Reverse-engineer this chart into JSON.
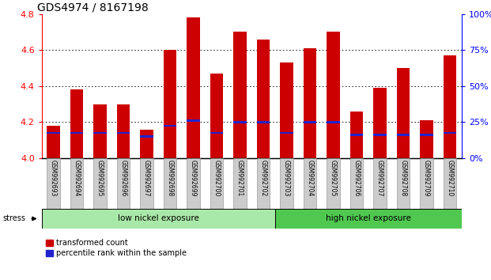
{
  "title": "GDS4974 / 8167198",
  "samples": [
    "GSM992693",
    "GSM992694",
    "GSM992695",
    "GSM992696",
    "GSM992697",
    "GSM992698",
    "GSM992699",
    "GSM992700",
    "GSM992701",
    "GSM992702",
    "GSM992703",
    "GSM992704",
    "GSM992705",
    "GSM992706",
    "GSM992707",
    "GSM992708",
    "GSM992709",
    "GSM992710"
  ],
  "red_values": [
    4.18,
    4.38,
    4.3,
    4.3,
    4.16,
    4.6,
    4.78,
    4.47,
    4.7,
    4.66,
    4.53,
    4.61,
    4.7,
    4.26,
    4.39,
    4.5,
    4.21,
    4.57
  ],
  "blue_values": [
    4.14,
    4.14,
    4.14,
    4.14,
    4.12,
    4.18,
    4.21,
    4.14,
    4.2,
    4.2,
    4.14,
    4.2,
    4.2,
    4.13,
    4.13,
    4.13,
    4.13,
    4.14
  ],
  "ymin": 4.0,
  "ymax": 4.8,
  "yticks_left": [
    4.0,
    4.2,
    4.4,
    4.6,
    4.8
  ],
  "yticks_right_vals": [
    0,
    25,
    50,
    75,
    100
  ],
  "yticks_right_labels": [
    "0%",
    "25%",
    "50%",
    "75%",
    "100%"
  ],
  "group1_label": "low nickel exposure",
  "group1_range": [
    0,
    9
  ],
  "group2_label": "high nickel exposure",
  "group2_range": [
    10,
    17
  ],
  "stress_label": "stress",
  "legend_red": "transformed count",
  "legend_blue": "percentile rank within the sample",
  "bar_color_red": "#cc0000",
  "bar_color_blue": "#2222cc",
  "bar_width": 0.55,
  "group1_color": "#a8e8a8",
  "group2_color": "#50c850",
  "title_fontsize": 10,
  "tick_fontsize": 8,
  "label_fontsize": 8,
  "blue_bar_height": 0.012
}
